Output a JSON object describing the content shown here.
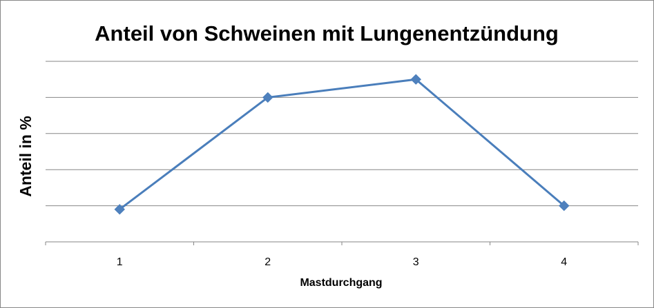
{
  "chart_data": {
    "type": "line",
    "title": "Anteil von Schweinen mit Lungenentzündung",
    "xlabel": "Mastdurchgang",
    "ylabel": "Anteil  in %",
    "categories": [
      "1",
      "2",
      "3",
      "4"
    ],
    "series": [
      {
        "values": [
          0.9,
          4.0,
          4.5,
          1.0
        ]
      }
    ],
    "ylim": [
      0,
      5
    ],
    "y_tick_labels_shown": false,
    "grid": true,
    "legend": "none",
    "colors": {
      "line": "#4a7ebb",
      "marker": "#4f81bd",
      "grid": "#868686",
      "axis": "#868686"
    }
  }
}
